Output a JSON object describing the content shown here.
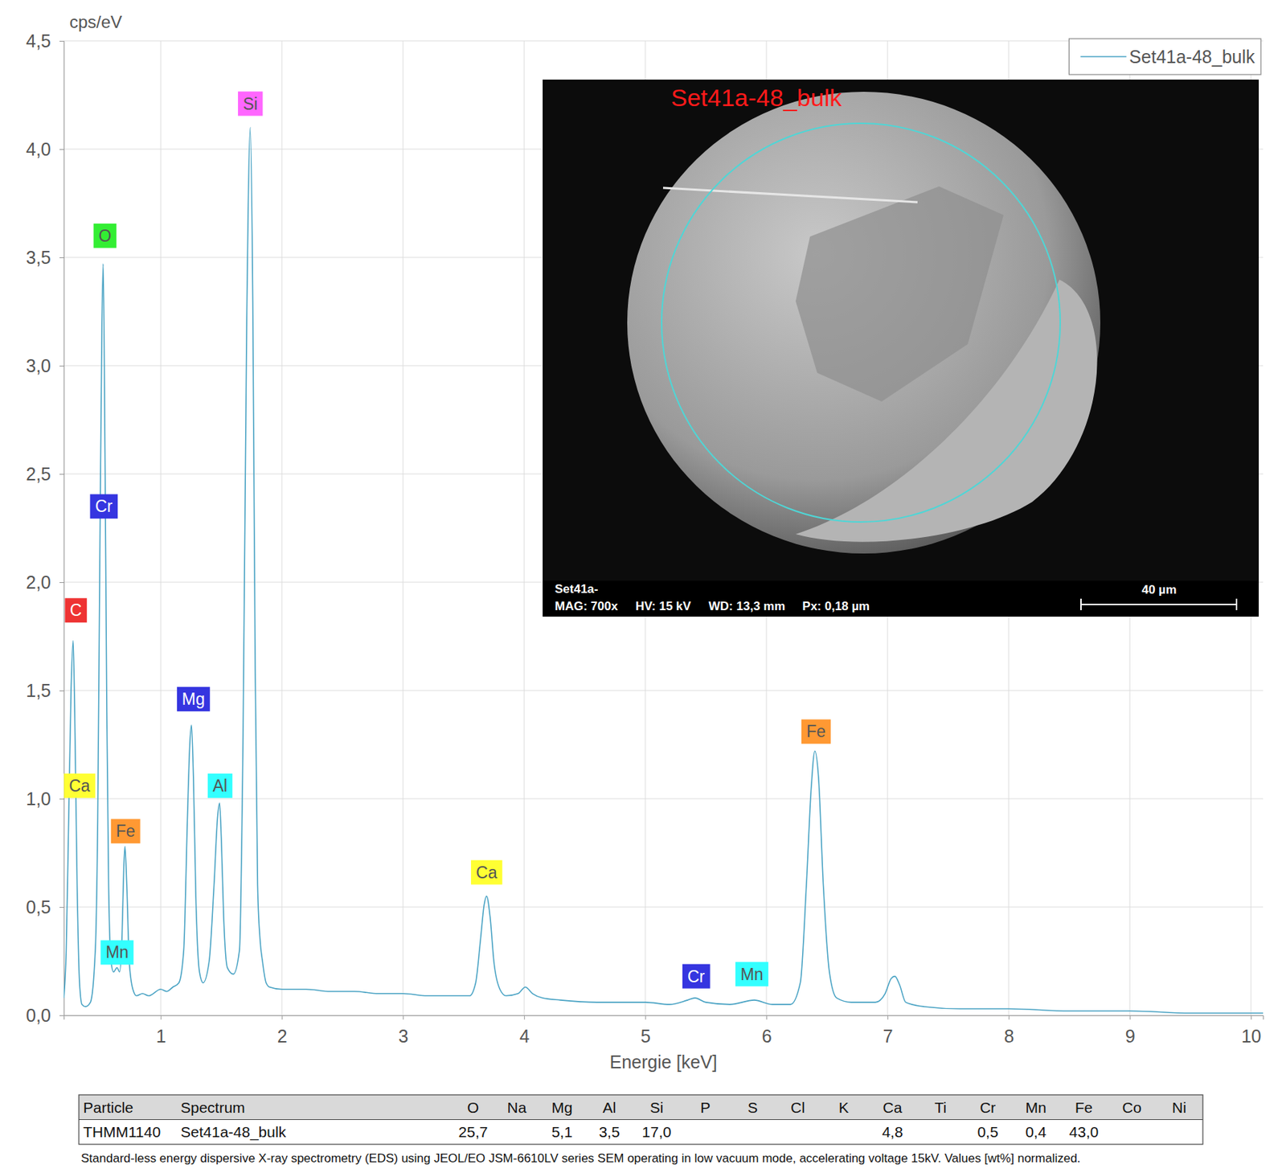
{
  "chart_data": {
    "type": "line",
    "y_label": "cps/eV",
    "x_label": "Energie [keV]",
    "xlim": [
      0.2,
      10.1
    ],
    "xticks": [
      1,
      2,
      3,
      4,
      5,
      6,
      7,
      8,
      9,
      10
    ],
    "ylim": [
      0,
      4.5
    ],
    "yticks": [
      {
        "value": 0,
        "label": "0,0"
      },
      {
        "value": 0.5,
        "label": "0,5"
      },
      {
        "value": 1,
        "label": "1,0"
      },
      {
        "value": 1.5,
        "label": "1,5"
      },
      {
        "value": 2,
        "label": "2,0"
      },
      {
        "value": 2.5,
        "label": "2,5"
      },
      {
        "value": 3,
        "label": "3,0"
      },
      {
        "value": 3.5,
        "label": "3,5"
      },
      {
        "value": 4,
        "label": "4,0"
      },
      {
        "value": 4.5,
        "label": "4,5"
      }
    ],
    "grid": true,
    "legend": "top-right",
    "x": [
      0.2,
      0.22,
      0.24,
      0.26,
      0.277,
      0.29,
      0.31,
      0.33,
      0.35,
      0.38,
      0.42,
      0.46,
      0.48,
      0.5,
      0.515,
      0.525,
      0.54,
      0.555,
      0.57,
      0.59,
      0.61,
      0.64,
      0.66,
      0.68,
      0.695,
      0.705,
      0.72,
      0.74,
      0.77,
      0.8,
      0.85,
      0.9,
      1.0,
      1.05,
      1.1,
      1.15,
      1.19,
      1.22,
      1.24,
      1.254,
      1.27,
      1.29,
      1.32,
      1.35,
      1.4,
      1.44,
      1.47,
      1.486,
      1.5,
      1.52,
      1.55,
      1.6,
      1.65,
      1.68,
      1.71,
      1.74,
      1.76,
      1.78,
      1.8,
      1.82,
      1.84,
      1.87,
      1.9,
      2.0,
      2.2,
      2.4,
      2.6,
      2.8,
      3.0,
      3.2,
      3.4,
      3.55,
      3.6,
      3.64,
      3.67,
      3.69,
      3.72,
      3.75,
      3.8,
      3.85,
      3.95,
      4.01,
      4.07,
      4.15,
      4.3,
      4.6,
      5.0,
      5.2,
      5.35,
      5.41,
      5.5,
      5.7,
      5.9,
      6.05,
      6.2,
      6.28,
      6.33,
      6.37,
      6.4,
      6.43,
      6.47,
      6.52,
      6.58,
      6.7,
      6.9,
      6.98,
      7.03,
      7.06,
      7.1,
      7.15,
      7.3,
      7.6,
      8.0,
      8.5,
      9.0,
      9.5,
      10.0,
      10.1
    ],
    "series": [
      {
        "name": "Set41a-48_bulk",
        "color": "#4aa3c4",
        "values": [
          0.08,
          0.3,
          0.9,
          1.5,
          1.73,
          1.4,
          0.6,
          0.15,
          0.05,
          0.04,
          0.06,
          0.3,
          0.9,
          2.3,
          3.2,
          3.47,
          2.6,
          1.4,
          0.6,
          0.25,
          0.2,
          0.22,
          0.2,
          0.35,
          0.68,
          0.78,
          0.6,
          0.25,
          0.12,
          0.09,
          0.1,
          0.09,
          0.12,
          0.11,
          0.13,
          0.15,
          0.3,
          0.9,
          1.25,
          1.34,
          1.1,
          0.55,
          0.2,
          0.15,
          0.25,
          0.6,
          0.92,
          0.98,
          0.82,
          0.45,
          0.22,
          0.19,
          0.3,
          1.3,
          3.2,
          4.1,
          3.3,
          1.6,
          0.6,
          0.35,
          0.25,
          0.15,
          0.13,
          0.12,
          0.12,
          0.11,
          0.11,
          0.1,
          0.1,
          0.09,
          0.09,
          0.09,
          0.15,
          0.35,
          0.51,
          0.55,
          0.45,
          0.25,
          0.12,
          0.09,
          0.1,
          0.13,
          0.1,
          0.08,
          0.07,
          0.06,
          0.06,
          0.05,
          0.07,
          0.08,
          0.06,
          0.05,
          0.07,
          0.05,
          0.05,
          0.15,
          0.6,
          1.05,
          1.22,
          1.1,
          0.6,
          0.2,
          0.08,
          0.06,
          0.06,
          0.1,
          0.17,
          0.18,
          0.14,
          0.06,
          0.04,
          0.03,
          0.03,
          0.02,
          0.02,
          0.01,
          0.01,
          0.01
        ]
      }
    ],
    "annotations": [
      {
        "text": "Si",
        "x": 1.74,
        "y": 4.21,
        "color": "#ff66ff"
      },
      {
        "text": "O",
        "x": 0.54,
        "y": 3.6,
        "color": "#33ee33"
      },
      {
        "text": "Cr",
        "x": 0.53,
        "y": 2.35,
        "color": "#3535e0"
      },
      {
        "text": "C",
        "x": 0.3,
        "y": 1.87,
        "color": "#ee3333"
      },
      {
        "text": "Ca",
        "x": 0.33,
        "y": 1.06,
        "color": "#ffff33"
      },
      {
        "text": "Fe",
        "x": 0.71,
        "y": 0.85,
        "color": "#ff9933"
      },
      {
        "text": "Mn",
        "x": 0.64,
        "y": 0.29,
        "color": "#33ffff"
      },
      {
        "text": "Mg",
        "x": 1.27,
        "y": 1.46,
        "color": "#3535e0"
      },
      {
        "text": "Al",
        "x": 1.49,
        "y": 1.06,
        "color": "#33ffff"
      },
      {
        "text": "Ca",
        "x": 3.69,
        "y": 0.66,
        "color": "#ffff33"
      },
      {
        "text": "Cr",
        "x": 5.42,
        "y": 0.18,
        "color": "#3535e0"
      },
      {
        "text": "Mn",
        "x": 5.88,
        "y": 0.19,
        "color": "#33ffff"
      },
      {
        "text": "Fe",
        "x": 6.41,
        "y": 1.31,
        "color": "#ff9933"
      }
    ]
  },
  "inset": {
    "title": "Set41a-48_bulk",
    "footer_label": "Set41a-",
    "footer_items": [
      "MAG: 700x",
      "HV: 15 kV",
      "WD: 13,3 mm",
      "Px: 0,18 µm"
    ],
    "scale_bar": "40 µm"
  },
  "table": {
    "header": [
      "Particle",
      "Spectrum",
      "O",
      "Na",
      "Mg",
      "Al",
      "Si",
      "P",
      "S",
      "Cl",
      "K",
      "Ca",
      "Ti",
      "Cr",
      "Mn",
      "Fe",
      "Co",
      "Ni"
    ],
    "rows": [
      [
        "THMM1140",
        "Set41a-48_bulk",
        "25,7",
        null,
        "5,1",
        "3,5",
        "17,0",
        null,
        null,
        null,
        null,
        "4,8",
        null,
        "0,5",
        "0,4",
        "43,0",
        null,
        null
      ]
    ]
  },
  "caption": "Standard-less energy dispersive X-ray spectrometry (EDS) using JEOL/EO JSM-6610LV series SEM operating in low vacuum mode, accelerating voltage 15kV. Values [wt%] normalized."
}
